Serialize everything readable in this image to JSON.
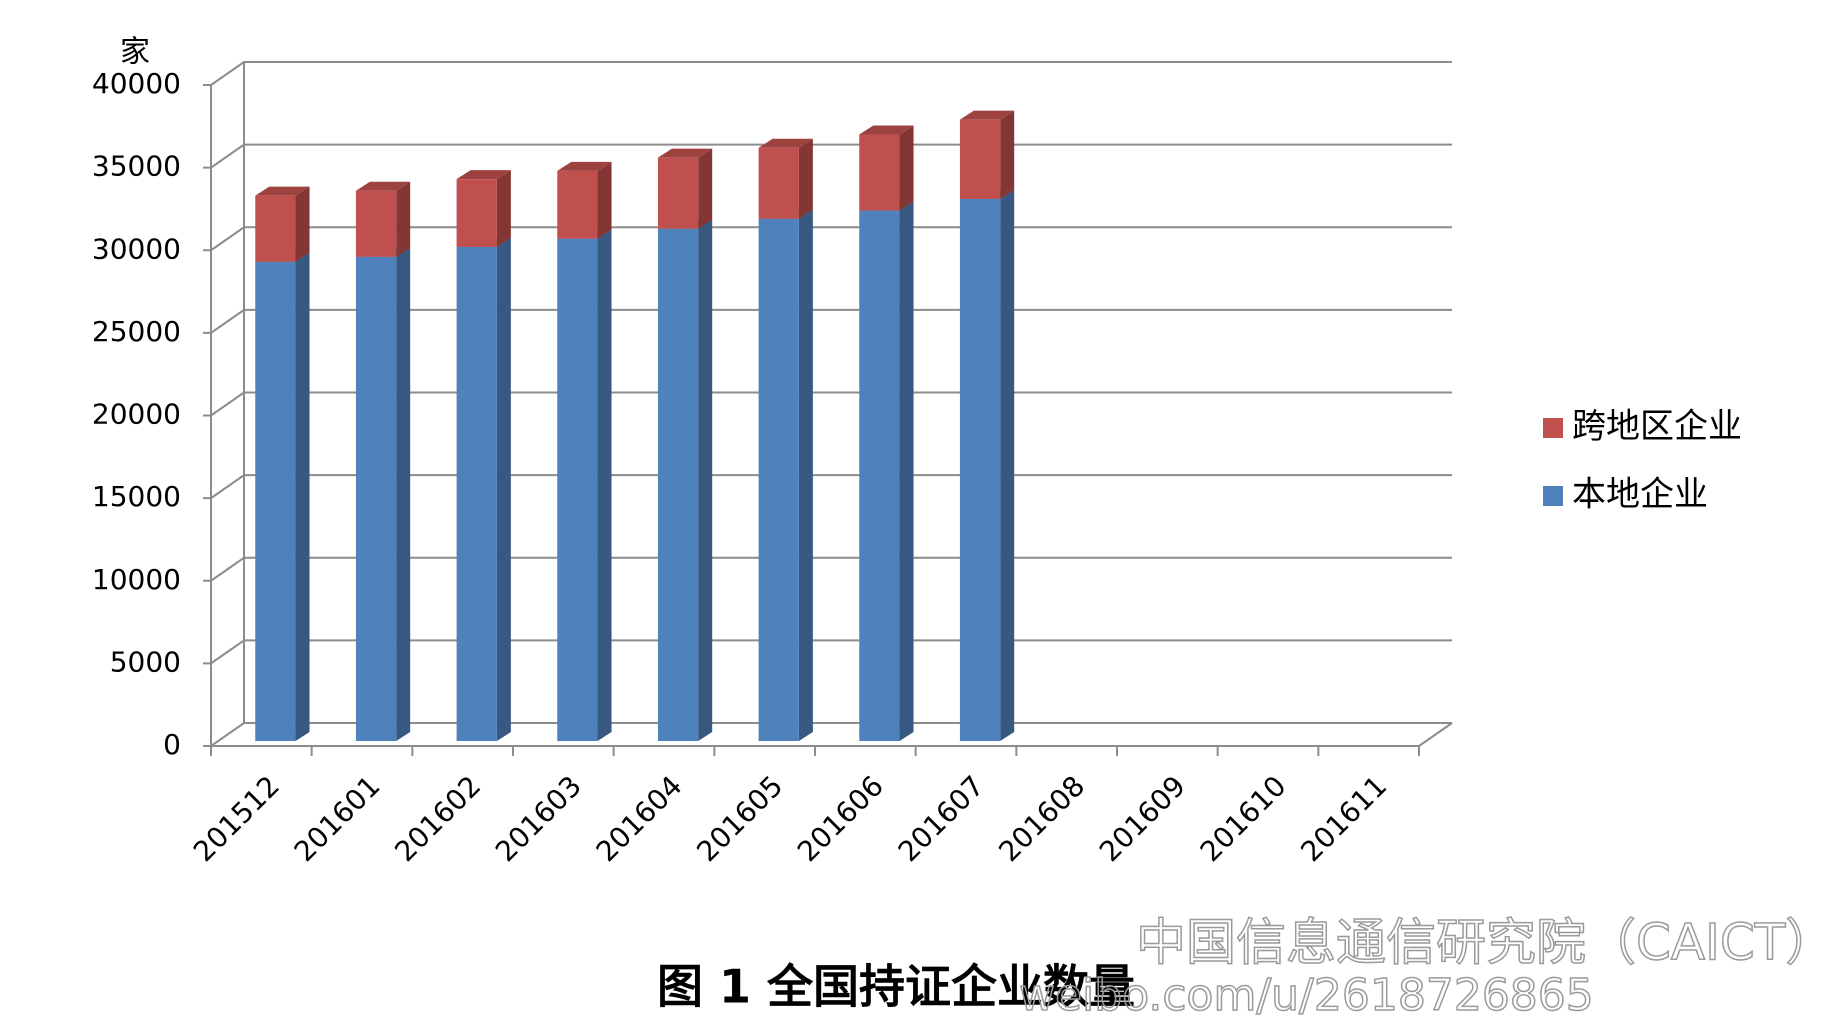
{
  "chart_data": {
    "type": "bar",
    "stacked": true,
    "three_d": true,
    "y_unit_label": "家",
    "caption": "图 1  全国持证企业数量",
    "watermark": [
      "中国信息通信研究院（CAICT）",
      "weibo.com/u/2618726865"
    ],
    "categories": [
      "201512",
      "201601",
      "201602",
      "201603",
      "201604",
      "201605",
      "201606",
      "201607",
      "201608",
      "201609",
      "201610",
      "201611"
    ],
    "series": [
      {
        "name": "本地企业",
        "color": "#4f81bd",
        "values": [
          29000,
          29300,
          29900,
          30400,
          31000,
          31600,
          32100,
          32800,
          null,
          null,
          null,
          null
        ]
      },
      {
        "name": "跨地区企业",
        "color": "#c0504d",
        "values": [
          4000,
          4000,
          4100,
          4100,
          4300,
          4300,
          4600,
          4800,
          null,
          null,
          null,
          null
        ]
      }
    ],
    "ylim": [
      0,
      40000
    ],
    "yticks": [
      0,
      5000,
      10000,
      15000,
      20000,
      25000,
      30000,
      35000,
      40000
    ],
    "grid": true,
    "legend": "right"
  }
}
